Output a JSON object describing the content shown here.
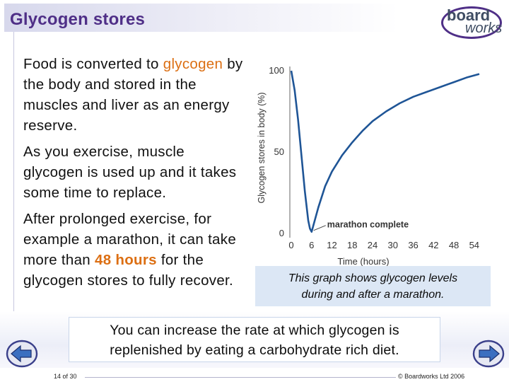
{
  "header": {
    "title": "Glycogen stores"
  },
  "logo": {
    "word1": "board",
    "word2": "works"
  },
  "body": {
    "p1": {
      "a": "Food is converted to ",
      "highlight": "glycogen",
      "b": " by the body and stored in the muscles and liver as an energy reserve."
    },
    "p2": "As you exercise, muscle glycogen is used up and it takes some time to replace.",
    "p3": {
      "a": "After prolonged exercise, for example a marathon, it can take more than ",
      "highlight": "48 hours",
      "b": " for the glycogen stores to fully recover."
    }
  },
  "chart_data": {
    "type": "line",
    "ylabel": "Glycogen stores in body (%)",
    "xlabel": "Time (hours)",
    "x_ticks": [
      "0",
      "6",
      "12",
      "18",
      "24",
      "30",
      "36",
      "42",
      "48",
      "54"
    ],
    "y_ticks": [
      "0",
      "50",
      "100"
    ],
    "xlim": [
      0,
      58
    ],
    "ylim": [
      0,
      100
    ],
    "annotation": "marathon complete",
    "line_color": "#1f5596",
    "series": [
      {
        "x": [
          0,
          1,
          2,
          3,
          4,
          5,
          5.5,
          6,
          8,
          10,
          12,
          15,
          18,
          21,
          24,
          28,
          32,
          36,
          40,
          44,
          48,
          52,
          55.5
        ],
        "y": [
          100,
          88,
          70,
          48,
          26,
          8,
          3,
          1,
          16,
          29,
          38,
          48,
          56,
          63,
          69,
          75,
          80,
          84,
          87,
          90,
          93,
          96,
          98
        ]
      }
    ]
  },
  "caption": {
    "line1": "This graph shows glycogen levels",
    "line2": "during and after a marathon."
  },
  "footer_box": {
    "line1": "You can increase the rate at which glycogen is",
    "line2": "replenished by eating a carbohydrate rich diet."
  },
  "footer": {
    "page": "14 of 30",
    "copyright": "© Boardworks Ltd 2006"
  }
}
